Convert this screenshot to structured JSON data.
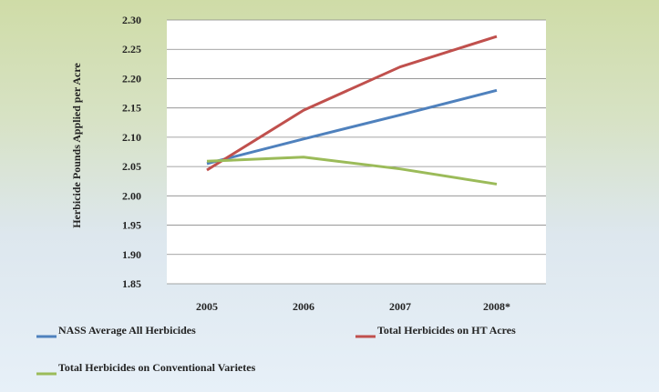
{
  "chart_data": {
    "type": "line",
    "title": "",
    "xlabel": "",
    "ylabel": "Herbicide Pounds Applied per Acre",
    "categories": [
      "2005",
      "2006",
      "2007",
      "2008*"
    ],
    "y_ticks": [
      "1.85",
      "1.90",
      "1.95",
      "2.00",
      "2.05",
      "2.10",
      "2.15",
      "2.20",
      "2.25",
      "2.30"
    ],
    "ylim": [
      1.85,
      2.3
    ],
    "grid": "horizontal",
    "legend_position": "bottom",
    "series": [
      {
        "name": "NASS Average All Herbicides",
        "color": "#4f81bd",
        "values": [
          2.055,
          2.097,
          2.138,
          2.18
        ]
      },
      {
        "name": "Total Herbicides on HT Acres",
        "color": "#c0504d",
        "values": [
          2.044,
          2.146,
          2.22,
          2.272
        ]
      },
      {
        "name": "Total Herbicides on Conventional Varietes",
        "color": "#9bbb59",
        "values": [
          2.059,
          2.066,
          2.046,
          2.02
        ]
      }
    ]
  }
}
